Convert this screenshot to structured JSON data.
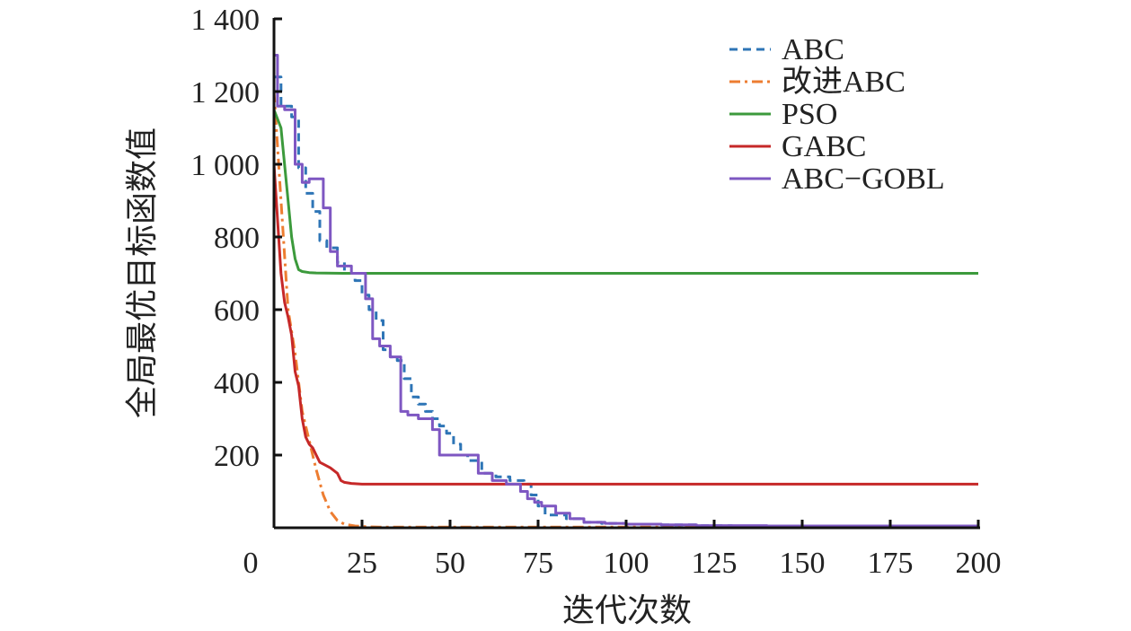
{
  "chart_data": {
    "type": "line",
    "title": "",
    "xlabel": "迭代次数",
    "ylabel": "全局最优目标函数值",
    "xlim": [
      0,
      200
    ],
    "ylim": [
      0,
      1400
    ],
    "xticks": [
      0,
      25,
      50,
      75,
      100,
      125,
      150,
      175,
      200
    ],
    "xtick_labels": [
      "0",
      "25",
      "50",
      "75",
      "100",
      "125",
      "150",
      "175",
      "200"
    ],
    "yticks": [
      200,
      400,
      600,
      800,
      1000,
      1200,
      1400
    ],
    "ytick_labels": [
      "200",
      "400",
      "600",
      "800",
      "1 000",
      "1 200",
      "1 400"
    ],
    "legend_position": "top-right",
    "series": [
      {
        "name": "ABC",
        "color": "#2e75b6",
        "style": "dashed",
        "step": true,
        "x": [
          0,
          2,
          5,
          7,
          9,
          11,
          13,
          15,
          18,
          20,
          23,
          25,
          27,
          29,
          31,
          33,
          35,
          37,
          39,
          41,
          43,
          45,
          47,
          49,
          51,
          53,
          55,
          59,
          63,
          67,
          71,
          73,
          75,
          77,
          83,
          87,
          93,
          100,
          110,
          120,
          130,
          150,
          200
        ],
        "y": [
          1240,
          1160,
          1130,
          990,
          920,
          870,
          790,
          770,
          730,
          700,
          680,
          640,
          600,
          570,
          490,
          470,
          460,
          410,
          360,
          340,
          320,
          300,
          280,
          260,
          230,
          200,
          185,
          150,
          140,
          130,
          120,
          90,
          60,
          35,
          25,
          15,
          12,
          10,
          8,
          6,
          5,
          5,
          5
        ]
      },
      {
        "name": "改进ABC",
        "color": "#ed7d31",
        "style": "dashdot",
        "step": false,
        "x": [
          0,
          2,
          4,
          6,
          8,
          10,
          12,
          14,
          16,
          18,
          20,
          23,
          26,
          30,
          40,
          60,
          100,
          200
        ],
        "y": [
          1200,
          900,
          600,
          480,
          320,
          240,
          160,
          90,
          45,
          20,
          10,
          5,
          3,
          2,
          2,
          2,
          2,
          2
        ]
      },
      {
        "name": "PSO",
        "color": "#3c9a3c",
        "style": "solid",
        "step": false,
        "x": [
          0,
          2,
          4,
          5,
          6,
          7,
          8,
          10,
          12,
          20,
          40,
          100,
          200
        ],
        "y": [
          1150,
          1100,
          900,
          800,
          740,
          710,
          705,
          702,
          701,
          700,
          700,
          700,
          700
        ],
        "end_value": 700
      },
      {
        "name": "GABC",
        "color": "#c62828",
        "style": "solid",
        "step": false,
        "x": [
          0,
          2,
          3,
          4,
          5,
          6,
          7,
          8,
          9,
          10,
          11,
          12,
          13,
          14,
          16,
          18,
          19,
          20,
          22,
          25,
          30,
          40,
          60,
          100,
          200
        ],
        "y": [
          1000,
          700,
          620,
          580,
          530,
          430,
          390,
          300,
          250,
          230,
          220,
          200,
          180,
          175,
          165,
          150,
          130,
          125,
          122,
          120,
          120,
          120,
          120,
          120,
          120
        ],
        "end_value": 120
      },
      {
        "name": "ABC−GOBL",
        "color": "#7e57c2",
        "style": "solid",
        "step": true,
        "x": [
          0,
          1,
          3,
          6,
          8,
          10,
          14,
          16,
          18,
          22,
          26,
          28,
          30,
          33,
          36,
          38,
          41,
          45,
          47,
          50,
          58,
          62,
          66,
          70,
          72,
          74,
          76,
          80,
          84,
          88,
          94,
          100,
          110,
          120,
          140,
          200
        ],
        "y": [
          1300,
          1160,
          1150,
          1000,
          950,
          960,
          880,
          760,
          720,
          700,
          630,
          520,
          500,
          470,
          320,
          310,
          300,
          270,
          200,
          200,
          150,
          130,
          120,
          100,
          80,
          70,
          60,
          40,
          25,
          15,
          12,
          10,
          8,
          6,
          5,
          5
        ]
      }
    ]
  }
}
